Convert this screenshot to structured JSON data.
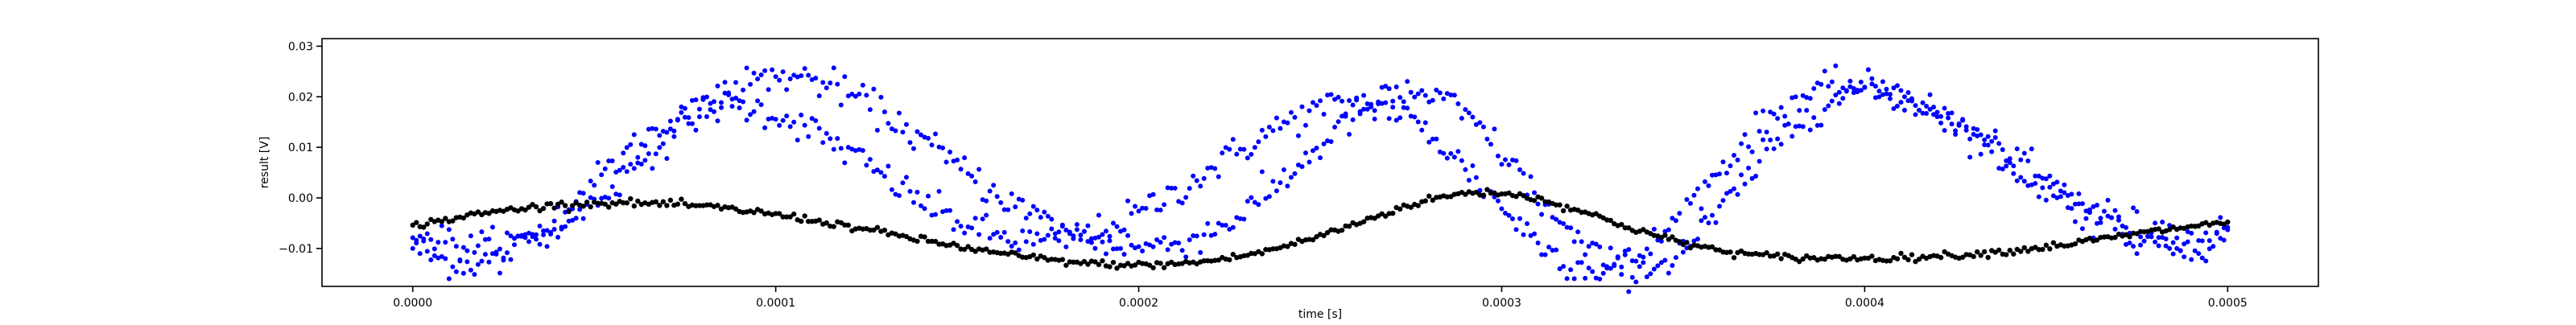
{
  "chart_data": {
    "type": "scatter",
    "title": "",
    "xlabel": "time [s]",
    "ylabel": "result [V]",
    "xlim": [
      -2.5e-05,
      0.000525
    ],
    "ylim": [
      -0.0175,
      0.0315
    ],
    "grid": false,
    "legend": "none",
    "x_ticks": [
      0,
      0.0001,
      0.0002,
      0.0003,
      0.0004,
      0.0005
    ],
    "x_tick_labels": [
      "0.0000",
      "0.0001",
      "0.0002",
      "0.0003",
      "0.0004",
      "0.0005"
    ],
    "y_ticks": [
      -0.01,
      0.0,
      0.01,
      0.02,
      0.03
    ],
    "y_tick_labels": [
      "−0.01",
      "0.00",
      "0.01",
      "0.02",
      "0.03"
    ],
    "series": [
      {
        "color": "#0000ff",
        "x": [
          0.0,
          5e-06,
          1e-05,
          1.5e-05,
          2e-05,
          2.5e-05,
          3e-05,
          3.5e-05,
          4e-05,
          4.5e-05,
          5e-05,
          5.5e-05,
          6e-05,
          6.5e-05,
          7e-05,
          7.5e-05,
          8e-05,
          8.5e-05,
          9e-05,
          9.5e-05,
          0.0001,
          0.000105,
          0.00011,
          0.000115,
          0.00012,
          0.000125,
          0.00013,
          0.000135,
          0.00014,
          0.000145,
          0.00015,
          0.000155,
          0.00016,
          0.000165,
          0.00017,
          0.000175,
          0.00018,
          0.000185,
          0.00019,
          0.000195,
          0.0002,
          0.000205,
          0.00021,
          0.000215,
          0.00022,
          0.000225,
          0.00023,
          0.000235,
          0.00024,
          0.000245,
          0.00025,
          0.000255,
          0.00026,
          0.000265,
          0.00027,
          0.000275,
          0.00028,
          0.000285,
          0.00029,
          0.000295,
          0.0003,
          0.000305,
          0.00031,
          0.000315,
          0.00032,
          0.000325,
          0.00033,
          0.000335,
          0.00034,
          0.000345,
          0.00035,
          0.000355,
          0.00036,
          0.000365,
          0.00037,
          0.000375,
          0.00038,
          0.000385,
          0.00039,
          0.000395,
          0.0004,
          0.000405,
          0.00041,
          0.000415,
          0.00042,
          0.000425,
          0.00043,
          0.000435,
          0.00044,
          0.000445,
          0.00045,
          0.000455,
          0.00046,
          0.000465,
          0.00047,
          0.000475,
          0.00048,
          0.000485,
          0.00049,
          0.000495,
          0.0005
        ],
        "y": [
          -0.0095,
          -0.0116,
          -0.0127,
          -0.0131,
          -0.0126,
          -0.0112,
          -0.0092,
          -0.0066,
          -0.0036,
          -0.0003,
          0.0031,
          0.0064,
          0.0095,
          0.0123,
          0.0146,
          0.0164,
          0.0175,
          0.0181,
          0.0181,
          0.0175,
          0.0165,
          0.0151,
          0.0133,
          0.0112,
          0.0089,
          0.0066,
          0.0041,
          0.0017,
          -0.0006,
          -0.0027,
          -0.0045,
          -0.0061,
          -0.0073,
          -0.0081,
          -0.0086,
          -0.0086,
          -0.0082,
          -0.0074,
          -0.0063,
          -0.0048,
          -0.003,
          -0.001,
          0.0011,
          0.0034,
          0.0057,
          0.0081,
          0.0104,
          0.0126,
          0.0146,
          0.0163,
          0.0176,
          0.0184,
          0.0187,
          0.0183,
          0.0172,
          0.0153,
          0.0127,
          0.0096,
          0.006,
          0.0022,
          -0.0017,
          -0.0054,
          -0.0087,
          -0.0114,
          -0.0132,
          -0.0141,
          -0.0139,
          -0.0126,
          -0.0102,
          -0.007,
          -0.003,
          0.0012,
          0.0055,
          0.0096,
          0.0132,
          0.0163,
          0.0188,
          0.0205,
          0.0216,
          0.022,
          0.0219,
          0.0212,
          0.0201,
          0.0186,
          0.0168,
          0.0148,
          0.0127,
          0.0104,
          0.008,
          0.0057,
          0.0034,
          0.0012,
          -0.0008,
          -0.0026,
          -0.0042,
          -0.0055,
          -0.0064,
          -0.0069,
          -0.0071,
          -0.0069,
          -0.0063
        ]
      },
      {
        "color": "#0000ff",
        "x": [
          0.0,
          5e-06,
          1e-05,
          1.5e-05,
          2e-05,
          2.5e-05,
          3e-05,
          3.5e-05,
          4e-05,
          4.5e-05,
          5e-05,
          5.5e-05,
          6e-05,
          6.5e-05,
          7e-05,
          7.5e-05,
          8e-05,
          8.5e-05,
          9e-05,
          9.5e-05,
          0.0001,
          0.000105,
          0.00011,
          0.000115,
          0.00012,
          0.000125,
          0.00013,
          0.000135,
          0.00014,
          0.000145,
          0.00015,
          0.000155,
          0.00016,
          0.000165,
          0.00017,
          0.000175,
          0.00018,
          0.000185,
          0.00019,
          0.000195,
          0.0002,
          0.000205,
          0.00021,
          0.000215,
          0.00022,
          0.000225,
          0.00023,
          0.000235,
          0.00024,
          0.000245,
          0.00025,
          0.000255,
          0.00026,
          0.000265,
          0.00027,
          0.000275,
          0.00028,
          0.000285,
          0.00029,
          0.000295,
          0.0003,
          0.000305,
          0.00031,
          0.000315,
          0.00032,
          0.000325,
          0.00033,
          0.000335,
          0.00034,
          0.000345,
          0.00035,
          0.000355,
          0.00036,
          0.000365,
          0.00037,
          0.000375,
          0.00038,
          0.000385,
          0.00039,
          0.000395,
          0.0004,
          0.000405,
          0.00041,
          0.000415,
          0.00042,
          0.000425,
          0.00043,
          0.000435,
          0.00044,
          0.000445,
          0.00045,
          0.000455,
          0.00046,
          0.000465,
          0.00047,
          0.000475,
          0.00048,
          0.000485,
          0.00049,
          0.000495,
          0.0005
        ],
        "y": [
          -0.0063,
          -0.0076,
          -0.0087,
          -0.0093,
          -0.0096,
          -0.0094,
          -0.0087,
          -0.0075,
          -0.0058,
          -0.0036,
          -0.0009,
          0.0021,
          0.0053,
          0.0087,
          0.012,
          0.0151,
          0.0179,
          0.0203,
          0.0221,
          0.0234,
          0.024,
          0.024,
          0.0234,
          0.0223,
          0.0207,
          0.0188,
          0.0166,
          0.0142,
          0.0116,
          0.009,
          0.0064,
          0.0038,
          0.0014,
          -0.0009,
          -0.003,
          -0.0048,
          -0.0064,
          -0.0077,
          -0.0087,
          -0.0093,
          -0.0096,
          -0.0095,
          -0.009,
          -0.008,
          -0.0066,
          -0.0047,
          -0.0023,
          0.0005,
          0.0036,
          0.0069,
          0.0103,
          0.0135,
          0.0164,
          0.0187,
          0.0202,
          0.0208,
          0.0203,
          0.0188,
          0.0163,
          0.013,
          0.009,
          0.0046,
          0.0,
          -0.0043,
          -0.0081,
          -0.0112,
          -0.0133,
          -0.0143,
          -0.0141,
          -0.0127,
          -0.0103,
          -0.0069,
          -0.0029,
          0.0015,
          0.0059,
          0.0101,
          0.0139,
          0.017,
          0.0194,
          0.0209,
          0.0215,
          0.0214,
          0.0205,
          0.019,
          0.017,
          0.0147,
          0.0121,
          0.0094,
          0.0067,
          0.004,
          0.0014,
          -0.001,
          -0.0032,
          -0.0051,
          -0.0067,
          -0.008,
          -0.0088,
          -0.0093,
          -0.0094,
          -0.0091,
          -0.0085
        ]
      },
      {
        "color": "#000000",
        "x": [
          0.0,
          5e-06,
          1e-05,
          1.5e-05,
          2e-05,
          2.5e-05,
          3e-05,
          3.5e-05,
          4e-05,
          4.5e-05,
          5e-05,
          5.5e-05,
          6e-05,
          6.5e-05,
          7e-05,
          7.5e-05,
          8e-05,
          8.5e-05,
          9e-05,
          9.5e-05,
          0.0001,
          0.000105,
          0.00011,
          0.000115,
          0.00012,
          0.000125,
          0.00013,
          0.000135,
          0.00014,
          0.000145,
          0.00015,
          0.000155,
          0.00016,
          0.000165,
          0.00017,
          0.000175,
          0.00018,
          0.000185,
          0.00019,
          0.000195,
          0.0002,
          0.000205,
          0.00021,
          0.000215,
          0.00022,
          0.000225,
          0.00023,
          0.000235,
          0.00024,
          0.000245,
          0.00025,
          0.000255,
          0.00026,
          0.000265,
          0.00027,
          0.000275,
          0.00028,
          0.000285,
          0.00029,
          0.000295,
          0.0003,
          0.000305,
          0.00031,
          0.000315,
          0.00032,
          0.000325,
          0.00033,
          0.000335,
          0.00034,
          0.000345,
          0.00035,
          0.000355,
          0.00036,
          0.000365,
          0.00037,
          0.000375,
          0.00038,
          0.000385,
          0.00039,
          0.000395,
          0.0004,
          0.000405,
          0.00041,
          0.000415,
          0.00042,
          0.000425,
          0.00043,
          0.000435,
          0.00044,
          0.000445,
          0.00045,
          0.000455,
          0.00046,
          0.000465,
          0.00047,
          0.000475,
          0.00048,
          0.000485,
          0.00049,
          0.000495,
          0.0005
        ],
        "y": [
          -0.0055,
          -0.0048,
          -0.0042,
          -0.0036,
          -0.003,
          -0.0025,
          -0.0021,
          -0.0017,
          -0.0014,
          -0.0012,
          -0.0011,
          -0.001,
          -0.001,
          -0.0011,
          -0.0012,
          -0.0014,
          -0.0017,
          -0.002,
          -0.0024,
          -0.0028,
          -0.0033,
          -0.0038,
          -0.0044,
          -0.005,
          -0.0056,
          -0.0063,
          -0.0069,
          -0.0076,
          -0.0083,
          -0.0089,
          -0.0096,
          -0.0102,
          -0.0108,
          -0.0113,
          -0.0118,
          -0.0122,
          -0.0126,
          -0.0129,
          -0.0131,
          -0.0132,
          -0.0133,
          -0.0132,
          -0.0131,
          -0.0128,
          -0.0124,
          -0.0119,
          -0.0113,
          -0.0105,
          -0.0096,
          -0.0086,
          -0.0075,
          -0.0063,
          -0.005,
          -0.0038,
          -0.0025,
          -0.0014,
          -0.0004,
          0.0004,
          0.0009,
          0.0011,
          0.001,
          0.0005,
          -0.0002,
          -0.0011,
          -0.0022,
          -0.0034,
          -0.0046,
          -0.0058,
          -0.0069,
          -0.008,
          -0.0089,
          -0.0097,
          -0.0104,
          -0.0109,
          -0.0113,
          -0.0116,
          -0.0118,
          -0.0119,
          -0.0119,
          -0.0119,
          -0.0119,
          -0.0119,
          -0.0118,
          -0.0117,
          -0.0115,
          -0.0113,
          -0.0111,
          -0.0108,
          -0.0105,
          -0.0101,
          -0.0097,
          -0.0092,
          -0.0087,
          -0.0082,
          -0.0076,
          -0.0071,
          -0.0066,
          -0.0061,
          -0.0056,
          -0.0052,
          -0.0049
        ]
      }
    ]
  }
}
